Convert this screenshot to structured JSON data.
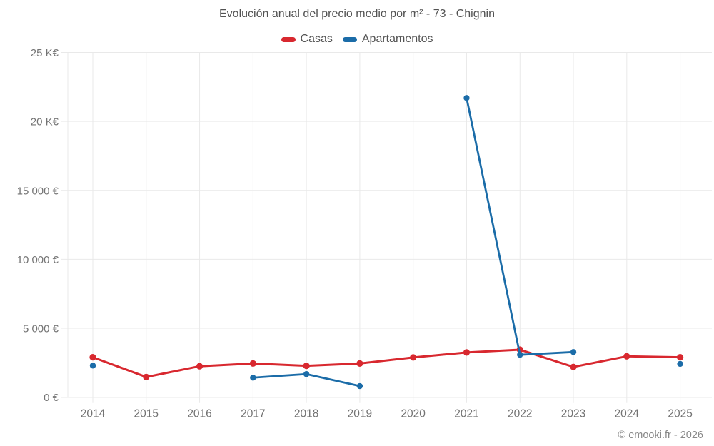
{
  "header": {
    "title": "Evolución anual del precio medio por m² - 73 - Chignin"
  },
  "footer": {
    "copyright": "© emooki.fr - 2026"
  },
  "colors": {
    "casas": "#d8282f",
    "apartamentos": "#1b6ca8",
    "grid": "#e9e9e9",
    "axis_zero_line": "#d6d6d6",
    "title_text": "#525252",
    "tick_text": "#737373",
    "copyright_text": "#898989",
    "background": "#ffffff"
  },
  "chart_data": {
    "type": "line",
    "title": "Evolución anual del precio medio por m² - 73 - Chignin",
    "xlabel": "",
    "ylabel": "",
    "x": [
      2014,
      2015,
      2016,
      2017,
      2018,
      2019,
      2020,
      2021,
      2022,
      2023,
      2024,
      2025
    ],
    "ylim": [
      0,
      25000
    ],
    "ytick_step": 5000,
    "ytick_labels": [
      "0 €",
      "5 000 €",
      "10 000 €",
      "15 000 €",
      "20 K€",
      "25 K€"
    ],
    "grid": true,
    "legend_position": "top",
    "series": [
      {
        "name": "Casas",
        "color": "#d8282f",
        "line_width": 3,
        "marker_radius": 4.6,
        "values": [
          2900,
          1470,
          2250,
          2450,
          2280,
          2450,
          2890,
          3250,
          3450,
          2200,
          2970,
          2900
        ]
      },
      {
        "name": "Apartamentos",
        "color": "#1b6ca8",
        "line_width": 2.8,
        "marker_radius": 4.2,
        "values": [
          2300,
          null,
          null,
          1420,
          1680,
          810,
          null,
          21700,
          3080,
          3280,
          null,
          2420
        ]
      }
    ]
  }
}
